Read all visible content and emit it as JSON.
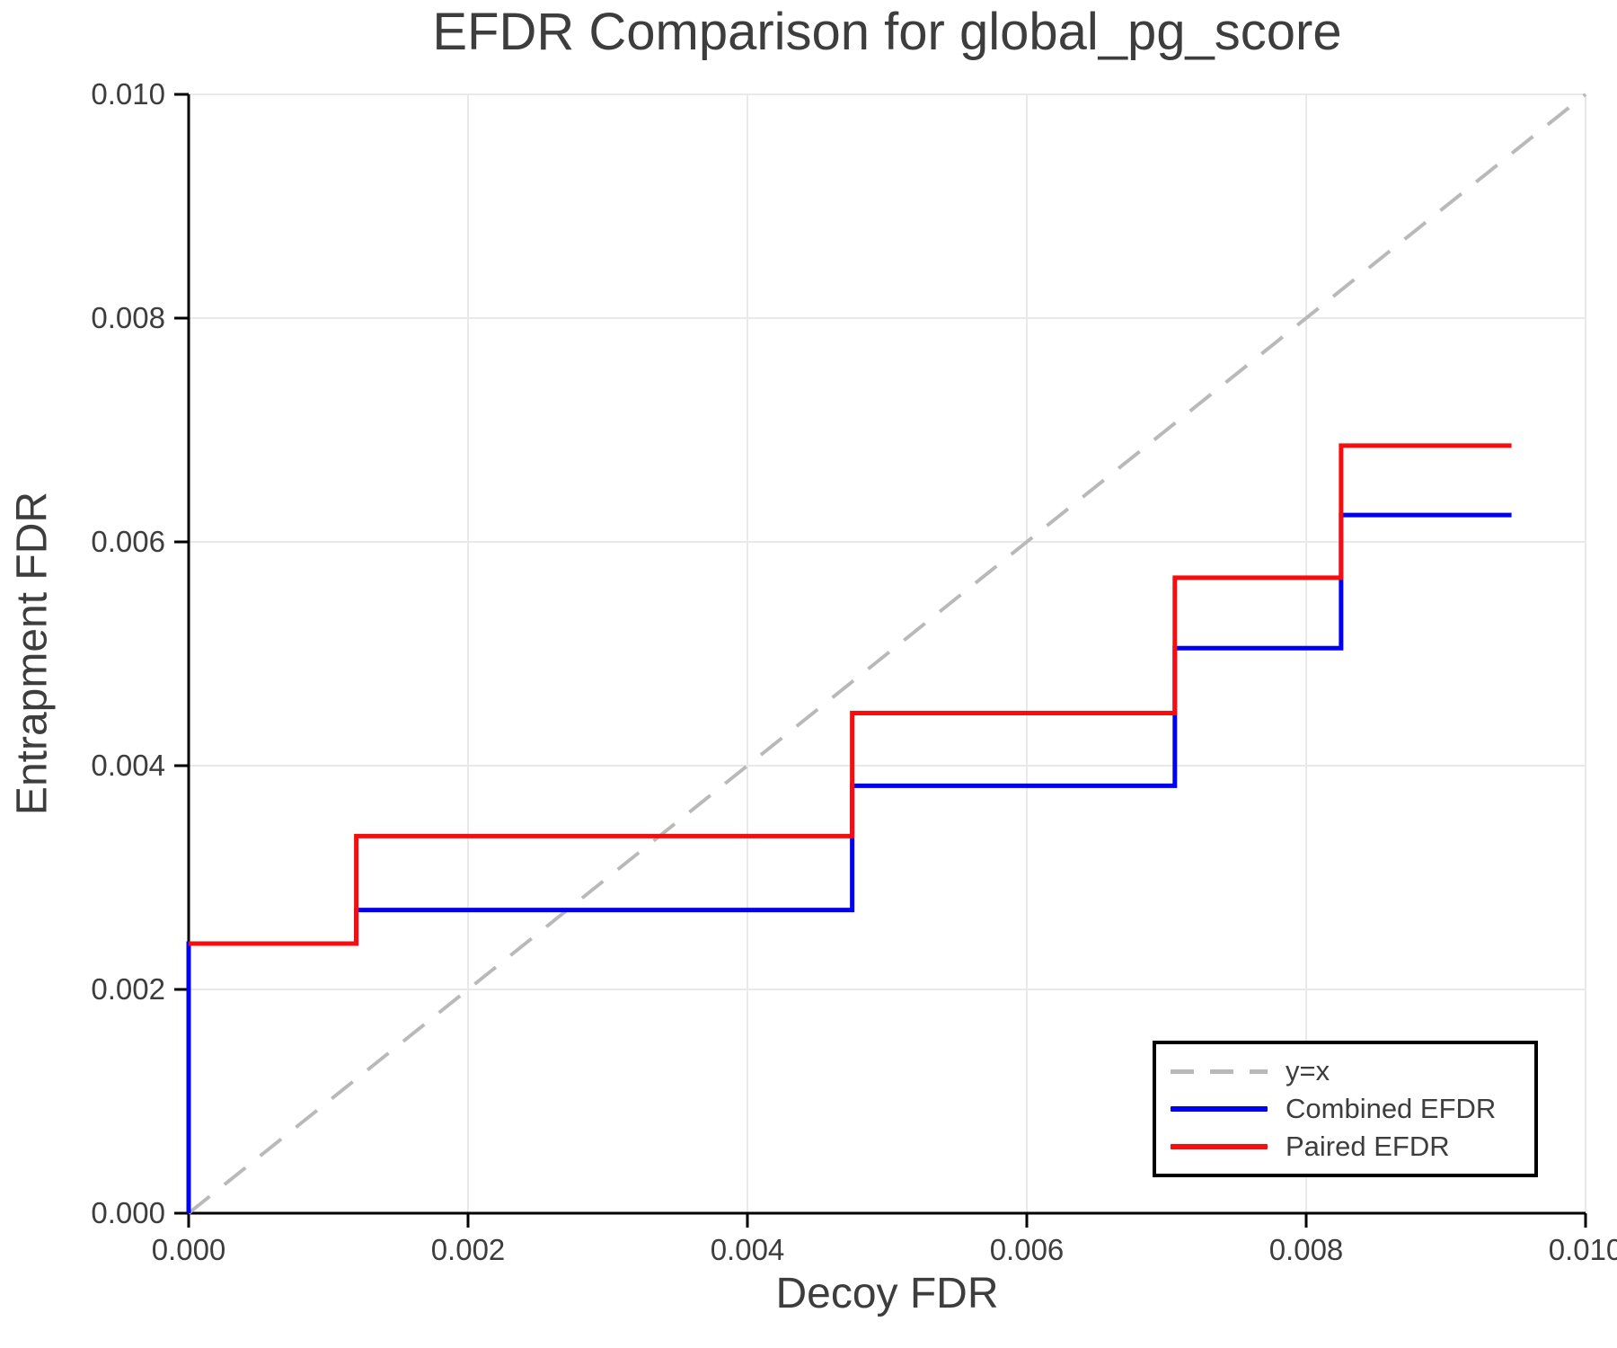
{
  "chart_data": {
    "type": "line",
    "title": "EFDR Comparison for global_pg_score",
    "xlabel": "Decoy FDR",
    "ylabel": "Entrapment FDR",
    "xlim": [
      0.0,
      0.01
    ],
    "ylim": [
      0.0,
      0.01
    ],
    "xticks": [
      0.0,
      0.002,
      0.004,
      0.006,
      0.008,
      0.01
    ],
    "yticks": [
      0.0,
      0.002,
      0.004,
      0.006,
      0.008,
      0.01
    ],
    "xtick_labels": [
      "0.000",
      "0.002",
      "0.004",
      "0.006",
      "0.008",
      "0.010"
    ],
    "ytick_labels": [
      "0.000",
      "0.002",
      "0.004",
      "0.006",
      "0.008",
      "0.010"
    ],
    "grid": true,
    "legend_position": "lower right",
    "series": [
      {
        "name": "y=x",
        "style": "dashed",
        "color": "#b9b9b9",
        "width": 4,
        "points": [
          [
            0.0,
            0.0
          ],
          [
            0.01,
            0.01
          ]
        ]
      },
      {
        "name": "Combined EFDR",
        "style": "solid",
        "color": "#0000f5",
        "width": 5,
        "points": [
          [
            0.0,
            0.0
          ],
          [
            0.0,
            0.00241
          ],
          [
            0.0012,
            0.00241
          ],
          [
            0.0012,
            0.00271
          ],
          [
            0.00475,
            0.00271
          ],
          [
            0.00475,
            0.00382
          ],
          [
            0.00706,
            0.00382
          ],
          [
            0.00706,
            0.00505
          ],
          [
            0.00825,
            0.00505
          ],
          [
            0.00825,
            0.00624
          ],
          [
            0.00947,
            0.00624
          ]
        ]
      },
      {
        "name": "Paired EFDR",
        "style": "solid",
        "color": "#f70d0d",
        "width": 5,
        "points": [
          [
            0.0,
            0.00241
          ],
          [
            0.0012,
            0.00241
          ],
          [
            0.0012,
            0.00337
          ],
          [
            0.00475,
            0.00337
          ],
          [
            0.00475,
            0.00447
          ],
          [
            0.00706,
            0.00447
          ],
          [
            0.00706,
            0.00568
          ],
          [
            0.00825,
            0.00568
          ],
          [
            0.00825,
            0.00686
          ],
          [
            0.00947,
            0.00686
          ]
        ]
      }
    ]
  },
  "colors": {
    "combined_efdr": "#0000f5",
    "paired_efdr": "#f70d0d",
    "identity_line": "#b9b9b9",
    "gridline": "#e9e9e9",
    "axis_spine": "#000000",
    "text": "#3d3d3d",
    "background": "#ffffff"
  }
}
